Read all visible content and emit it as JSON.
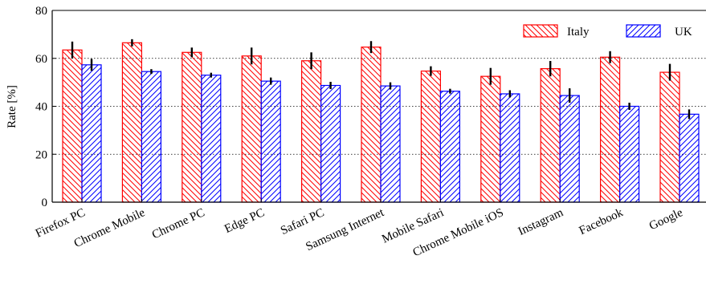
{
  "chart_data": {
    "type": "bar",
    "ylabel": "Rate [%]",
    "ylim": [
      0,
      80
    ],
    "yticks": [
      0,
      20,
      40,
      60,
      80
    ],
    "grid": "horizontal-dotted",
    "legend_position": "top-right",
    "categories": [
      "Firefox PC",
      "Chrome Mobile",
      "Chrome PC",
      "Edge PC",
      "Safari PC",
      "Samsung Internet",
      "Mobile Safari",
      "Chrome Mobile iOS",
      "Instagram",
      "Facebook",
      "Google"
    ],
    "series": [
      {
        "name": "Italy",
        "color": "#ff0000",
        "hatch": "backslash",
        "values": [
          63.5,
          66.5,
          62.5,
          61.0,
          59.0,
          64.7,
          54.7,
          52.5,
          55.7,
          60.5,
          54.2
        ],
        "errors": [
          3.5,
          1.5,
          2.0,
          3.5,
          3.5,
          2.5,
          2.0,
          3.5,
          3.2,
          2.5,
          3.5
        ]
      },
      {
        "name": "UK",
        "color": "#0000ff",
        "hatch": "slash",
        "values": [
          57.3,
          54.5,
          53.0,
          50.5,
          48.7,
          48.5,
          46.3,
          45.2,
          44.5,
          40.0,
          36.7
        ],
        "errors": [
          2.5,
          1.0,
          1.0,
          1.5,
          1.5,
          1.5,
          1.0,
          1.5,
          3.0,
          1.5,
          2.0
        ]
      }
    ]
  }
}
